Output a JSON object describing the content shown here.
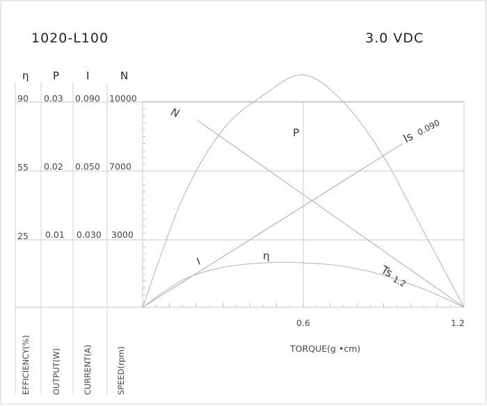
{
  "model": "1020-L100",
  "voltage": "3.0 VDC",
  "columns": [
    {
      "symbol": "η",
      "axis_label": "EFFICIENCY(%)",
      "ticks": [
        "90",
        "55",
        "25"
      ]
    },
    {
      "symbol": "P",
      "axis_label": "OUTPUT(W)",
      "ticks": [
        "0.03",
        "0.02",
        "0.01"
      ]
    },
    {
      "symbol": "I",
      "axis_label": "CURRENT(A)",
      "ticks": [
        "0.090",
        "0.050",
        "0.030"
      ]
    },
    {
      "symbol": "N",
      "axis_label": "SPEED(rpm)",
      "ticks": [
        "10000",
        "7000",
        "3000"
      ]
    }
  ],
  "chart_data": {
    "type": "line",
    "xlabel": "TORQUE(g •cm)",
    "x_ticks": [
      "0.6",
      "1.2"
    ],
    "xlim": [
      0,
      1.2
    ],
    "grid": true,
    "series": [
      {
        "name": "N",
        "x": [
          0.1,
          1.2
        ],
        "y_speed_rpm": [
          10000,
          0
        ]
      },
      {
        "name": "I",
        "x": [
          0,
          1.2
        ],
        "y_current_a": [
          0,
          0.09
        ]
      },
      {
        "name": "P",
        "x": [
          0,
          0.15,
          0.3,
          0.45,
          0.6,
          0.75,
          0.9,
          1.05,
          1.2
        ],
        "y_output_w": [
          0,
          0.016,
          0.026,
          0.031,
          0.034,
          0.03,
          0.022,
          0.011,
          0
        ]
      },
      {
        "name": "η",
        "x": [
          0,
          0.15,
          0.3,
          0.45,
          0.6,
          0.75,
          0.9,
          1.05,
          1.2
        ],
        "y_efficiency_pct": [
          0,
          12,
          17.5,
          19.5,
          19.5,
          18,
          14,
          8,
          0
        ]
      }
    ],
    "annotations": {
      "stall_current": {
        "label": "Is",
        "value": "0.090"
      },
      "stall_torque": {
        "label": "Ts",
        "value": "1.2"
      }
    }
  }
}
